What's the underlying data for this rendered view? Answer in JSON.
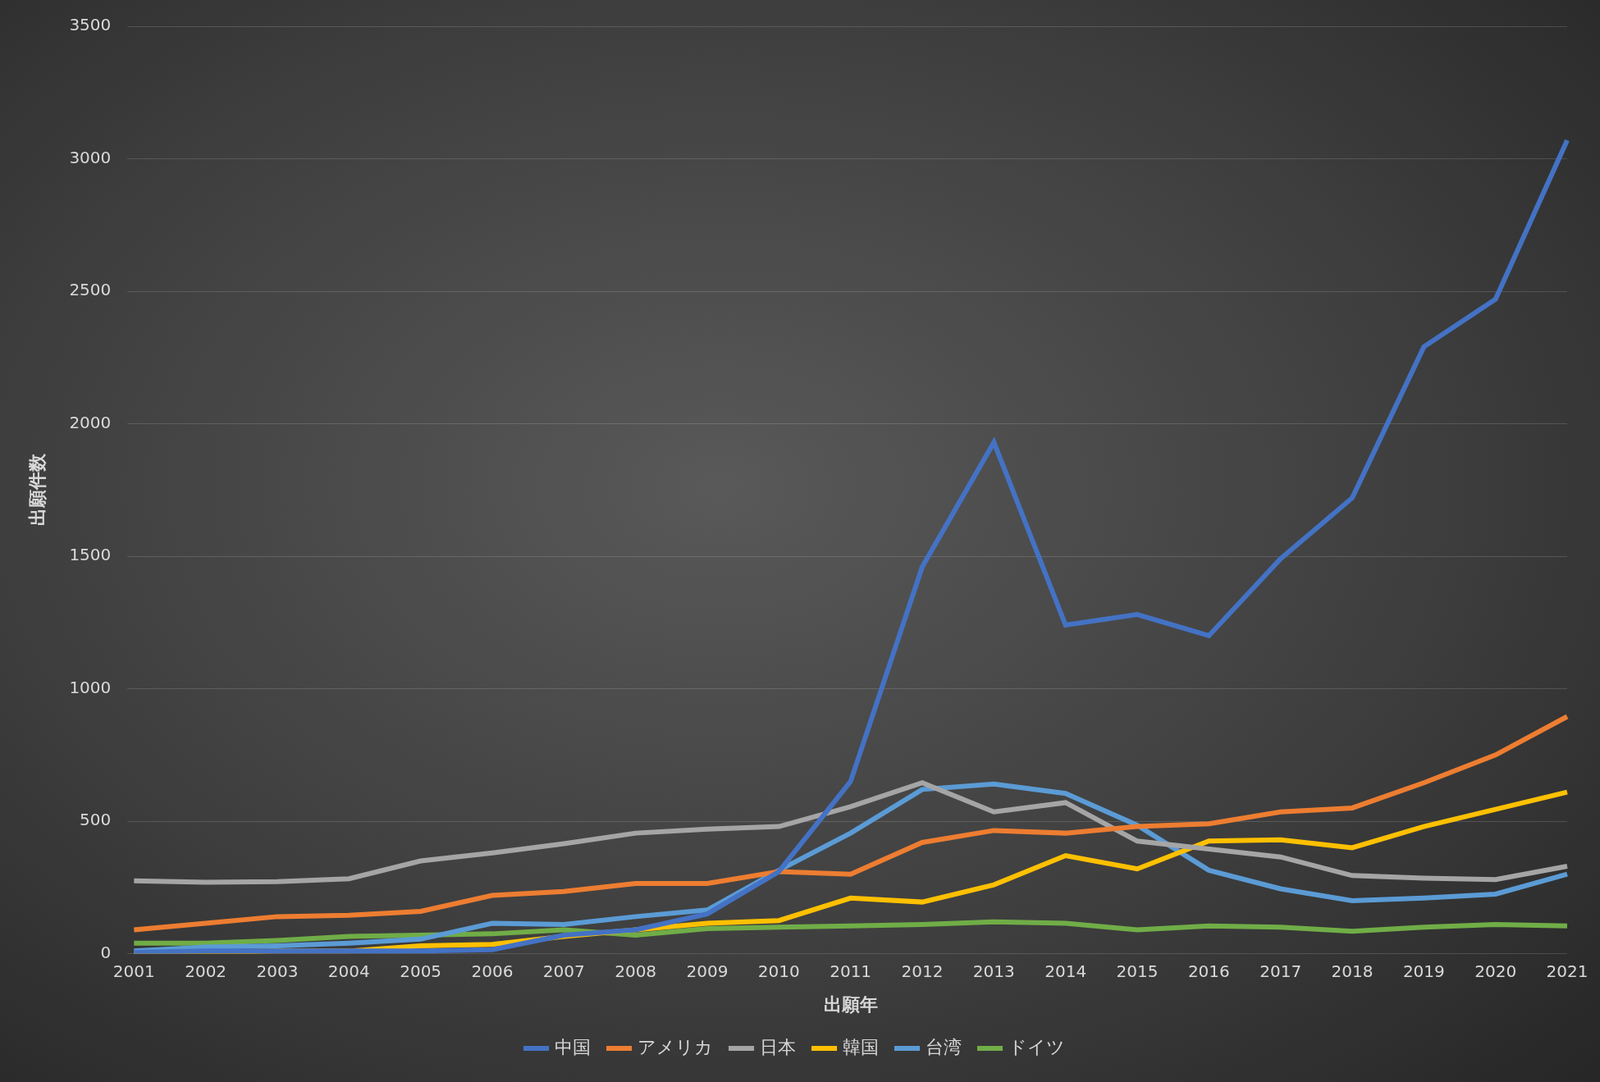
{
  "chart_data": {
    "type": "line",
    "x_label": "出願年",
    "y_label": "出願件数",
    "categories": [
      "2001",
      "2002",
      "2003",
      "2004",
      "2005",
      "2006",
      "2007",
      "2008",
      "2009",
      "2010",
      "2011",
      "2012",
      "2013",
      "2014",
      "2015",
      "2016",
      "2017",
      "2018",
      "2019",
      "2020",
      "2021"
    ],
    "series": [
      {
        "name": "中国",
        "color": "#4472c4",
        "values": [
          5,
          10,
          10,
          10,
          10,
          15,
          70,
          90,
          150,
          310,
          650,
          1460,
          1930,
          1240,
          1280,
          1200,
          1490,
          1720,
          2290,
          2470,
          3070
        ]
      },
      {
        "name": "アメリカ",
        "color": "#ed7d31",
        "values": [
          90,
          115,
          140,
          145,
          160,
          220,
          235,
          265,
          265,
          310,
          300,
          420,
          465,
          455,
          480,
          490,
          535,
          550,
          645,
          750,
          895
        ]
      },
      {
        "name": "日本",
        "color": "#a5a5a5",
        "values": [
          275,
          270,
          272,
          283,
          350,
          380,
          415,
          455,
          470,
          480,
          555,
          645,
          535,
          570,
          425,
          395,
          365,
          295,
          285,
          280,
          330
        ]
      },
      {
        "name": "韓国",
        "color": "#ffc000",
        "values": [
          0,
          5,
          10,
          10,
          30,
          35,
          65,
          90,
          115,
          125,
          210,
          195,
          260,
          370,
          320,
          425,
          430,
          400,
          480,
          545,
          610
        ]
      },
      {
        "name": "台湾",
        "color": "#5b9bd5",
        "values": [
          10,
          25,
          30,
          40,
          55,
          115,
          110,
          140,
          165,
          315,
          455,
          620,
          640,
          605,
          485,
          315,
          245,
          200,
          210,
          225,
          300
        ]
      },
      {
        "name": "ドイツ",
        "color": "#70ad47",
        "values": [
          40,
          40,
          50,
          65,
          70,
          75,
          90,
          70,
          95,
          100,
          105,
          110,
          120,
          115,
          90,
          105,
          100,
          85,
          100,
          110,
          105
        ]
      }
    ],
    "ylim": [
      0,
      3500
    ],
    "yticks": [
      0,
      500,
      1000,
      1500,
      2000,
      2500,
      3000,
      3500
    ],
    "grid": true,
    "legend": "bottom"
  }
}
